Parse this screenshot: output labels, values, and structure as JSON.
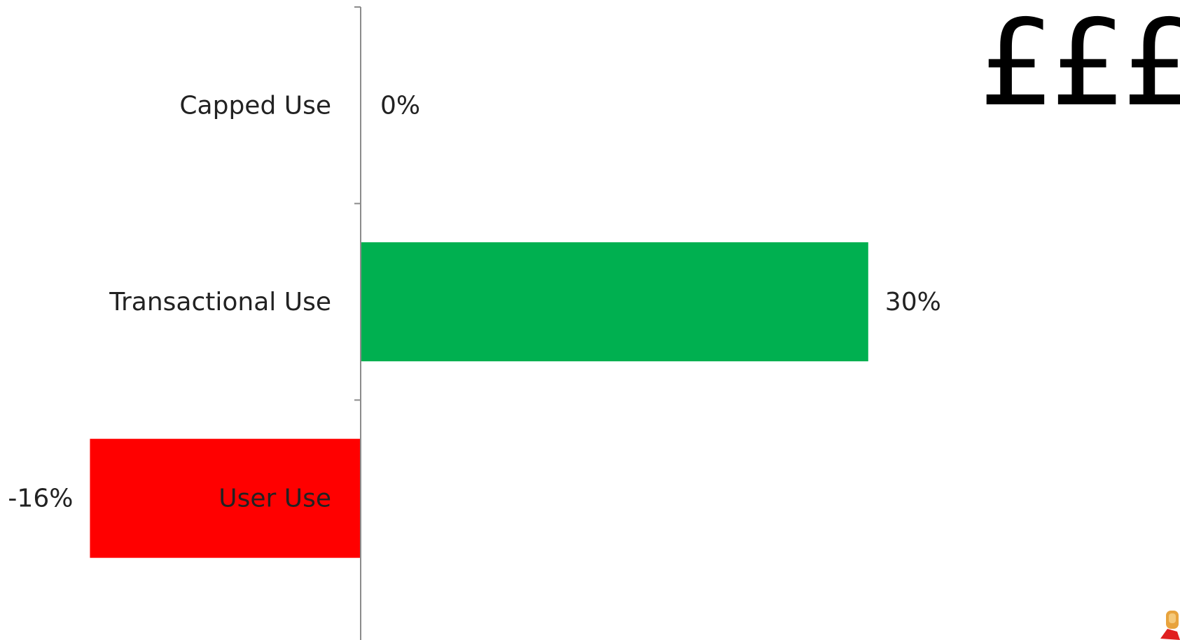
{
  "corner_text": "£££",
  "colors": {
    "positive_bar": "#00b050",
    "negative_bar": "#ff0000",
    "axis": "#8c8c8c",
    "text": "#222222"
  },
  "chart_data": {
    "type": "bar",
    "orientation": "horizontal",
    "categories": [
      "Capped Use",
      "Transactional Use",
      "User Use"
    ],
    "values": [
      0,
      30,
      -16
    ],
    "data_labels": [
      "0%",
      "30%",
      "-16%"
    ],
    "bar_colors": [
      "#00b050",
      "#00b050",
      "#ff0000"
    ],
    "unit": "%",
    "xlim": [
      -16,
      30
    ],
    "grid": false,
    "legend": "none"
  }
}
